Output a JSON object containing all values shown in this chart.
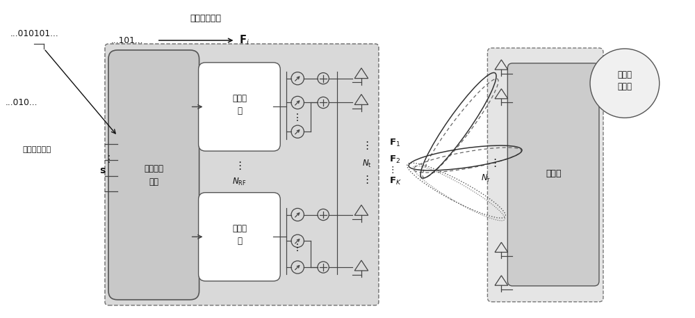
{
  "bg_color": "#ffffff",
  "outer_box_color": "#d9d9d9",
  "bb_box_color": "#c8c8c8",
  "rf_box_color": "#ffffff",
  "recv_box_color": "#d0d0d0",
  "recv_outer_color": "#e8e8e8",
  "dark": "#111111",
  "line_color": "#444444",
  "dashed_color": "#666666",
  "label_beam_select": "波束选择部分",
  "label_data_bits1": "...010101...",
  "label_data_bits2": "...101...",
  "label_010": "...010...",
  "label_data_symbol": "数据符号向量",
  "label_baseband": "基带处理\n单元",
  "label_rf1": "射频链\n路",
  "label_rf2": "射频链\n路",
  "label_receiver": "接收机",
  "label_sensing": "感知目\n标区域",
  "fig_width": 10.0,
  "fig_height": 4.57
}
